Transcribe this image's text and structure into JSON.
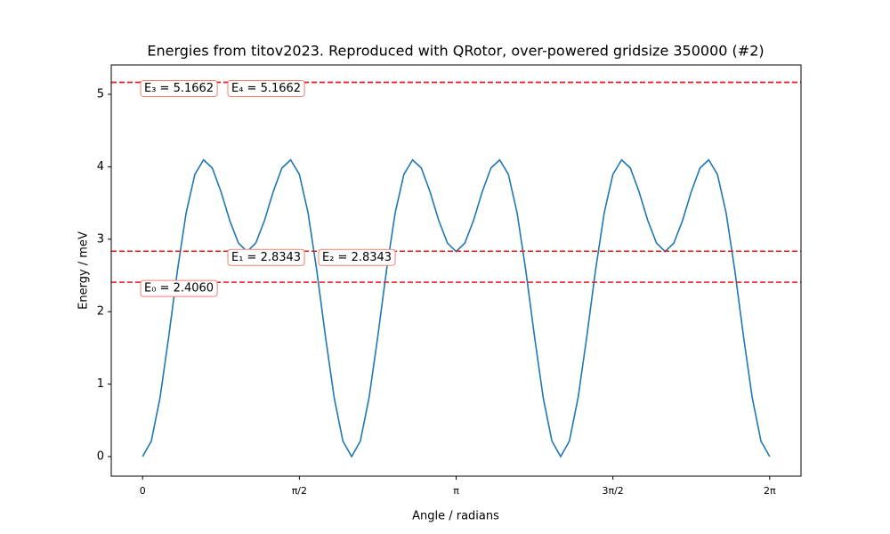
{
  "chart_data": {
    "type": "line",
    "title": "Energies from titov2023. Reproduced with QRotor, over-powered gridsize 350000 (#2)",
    "xlabel": "Angle / radians",
    "ylabel": "Energy / meV",
    "color": "#1f77b4",
    "level_color": "#e41a1c",
    "box_edge": "#f08070",
    "x": [
      0,
      0.0873,
      0.1745,
      0.2618,
      0.3491,
      0.4363,
      0.5236,
      0.6109,
      0.6981,
      0.7854,
      0.8727,
      0.9599,
      1.0472,
      1.1345,
      1.2217,
      1.309,
      1.3963,
      1.4835,
      1.5708,
      1.6581,
      1.7453,
      1.8326,
      1.9199,
      2.0071,
      2.0944,
      2.1817,
      2.2689,
      2.3562,
      2.4435,
      2.5307,
      2.618,
      2.7053,
      2.7925,
      2.8798,
      2.9671,
      3.0543,
      3.1416,
      3.2289,
      3.3161,
      3.4034,
      3.4907,
      3.5779,
      3.6652,
      3.7525,
      3.8397,
      3.927,
      4.0143,
      4.1015,
      4.1888,
      4.2761,
      4.3633,
      4.4506,
      4.5379,
      4.6251,
      4.7124,
      4.7997,
      4.8869,
      4.9742,
      5.0615,
      5.1487,
      5.236,
      5.3233,
      5.4105,
      5.4978,
      5.5851,
      5.6723,
      5.7596,
      5.8469,
      5.9341,
      6.0214,
      6.1087,
      6.1959,
      6.2832
    ],
    "values": [
      0,
      0.214,
      0.81,
      1.654,
      2.568,
      3.363,
      3.895,
      4.095,
      3.983,
      3.656,
      3.26,
      2.948,
      2.83,
      2.948,
      3.26,
      3.656,
      3.983,
      4.095,
      3.895,
      3.363,
      2.568,
      1.654,
      0.81,
      0.214,
      0,
      0.214,
      0.81,
      1.654,
      2.568,
      3.363,
      3.895,
      4.095,
      3.983,
      3.656,
      3.26,
      2.948,
      2.83,
      2.948,
      3.26,
      3.656,
      3.983,
      4.095,
      3.895,
      3.363,
      2.568,
      1.654,
      0.81,
      0.214,
      0,
      0.214,
      0.81,
      1.654,
      2.568,
      3.363,
      3.895,
      4.095,
      3.983,
      3.656,
      3.26,
      2.948,
      2.83,
      2.948,
      3.26,
      3.656,
      3.983,
      4.095,
      3.895,
      3.363,
      2.568,
      1.654,
      0.81,
      0.214,
      0
    ],
    "levels": [
      {
        "label": "E₀ = 2.4060",
        "value": 2.406
      },
      {
        "label": "E₁ = 2.8343",
        "value": 2.8343
      },
      {
        "label": "E₂ = 2.8343",
        "value": 2.8343
      },
      {
        "label": "E₃ = 5.1662",
        "value": 5.1662
      },
      {
        "label": "E₄ = 5.1662",
        "value": 5.1662
      }
    ],
    "xlim": [
      -0.314,
      6.597
    ],
    "ylim": [
      -0.27,
      5.405
    ],
    "xticks": [
      0,
      {
        "value": 1.5708,
        "label": "π/2"
      },
      {
        "value": 3.1416,
        "label": "π"
      },
      {
        "value": 4.7124,
        "label": "3π/2"
      },
      {
        "value": 6.2832,
        "label": "2π"
      }
    ],
    "yticks": [
      0,
      1,
      2,
      3,
      4,
      5
    ]
  }
}
